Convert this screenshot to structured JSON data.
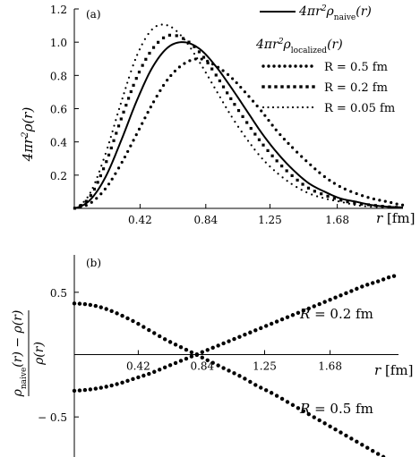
{
  "chart_data": [
    {
      "type": "line",
      "panel_label": "(a)",
      "xlabel": "r [fm]",
      "ylabel": "4πr²ρ(r)",
      "xlim": [
        0,
        2.1
      ],
      "ylim": [
        0,
        1.2
      ],
      "x_ticks": [
        "0.42",
        "0.84",
        "1.25",
        "1.68"
      ],
      "x_tick_values": [
        0.42,
        0.84,
        1.25,
        1.68
      ],
      "y_ticks": [
        "0.2",
        "0.4",
        "0.6",
        "0.8",
        "1.0",
        "1.2"
      ],
      "y_tick_values": [
        0.2,
        0.4,
        0.6,
        0.8,
        1.0,
        1.2
      ],
      "legend_header": "4πr²ρ_localized(r)",
      "grid": false,
      "series": [
        {
          "name": "4πr²ρ_naive(r)",
          "style": "solid",
          "x": [
            0.0,
            0.1,
            0.2,
            0.3,
            0.4,
            0.5,
            0.6,
            0.7,
            0.8,
            0.9,
            1.0,
            1.1,
            1.2,
            1.3,
            1.4,
            1.5,
            1.6,
            1.7,
            1.8,
            1.9,
            2.0,
            2.1
          ],
          "values": [
            0.0,
            0.05,
            0.19,
            0.41,
            0.65,
            0.85,
            0.97,
            1.0,
            0.96,
            0.86,
            0.73,
            0.59,
            0.45,
            0.33,
            0.23,
            0.15,
            0.1,
            0.06,
            0.04,
            0.02,
            0.01,
            0.006
          ]
        },
        {
          "name": "R = 0.5 fm",
          "style": "dotted-round",
          "x": [
            0.0,
            0.1,
            0.2,
            0.3,
            0.4,
            0.5,
            0.6,
            0.7,
            0.8,
            0.9,
            1.0,
            1.1,
            1.2,
            1.3,
            1.4,
            1.5,
            1.6,
            1.7,
            1.8,
            1.9,
            2.0,
            2.1
          ],
          "values": [
            0.0,
            0.03,
            0.12,
            0.27,
            0.45,
            0.63,
            0.78,
            0.87,
            0.9,
            0.86,
            0.79,
            0.69,
            0.58,
            0.46,
            0.36,
            0.27,
            0.19,
            0.13,
            0.09,
            0.06,
            0.04,
            0.02
          ]
        },
        {
          "name": "R = 0.2 fm",
          "style": "dotted-square",
          "x": [
            0.0,
            0.1,
            0.2,
            0.3,
            0.4,
            0.5,
            0.6,
            0.7,
            0.8,
            0.9,
            1.0,
            1.1,
            1.2,
            1.3,
            1.4,
            1.5,
            1.6,
            1.7,
            1.8,
            1.9,
            2.0,
            2.1
          ],
          "values": [
            0.0,
            0.07,
            0.27,
            0.54,
            0.79,
            0.96,
            1.04,
            1.02,
            0.94,
            0.81,
            0.66,
            0.52,
            0.39,
            0.28,
            0.19,
            0.12,
            0.08,
            0.05,
            0.03,
            0.02,
            0.01,
            0.005
          ]
        },
        {
          "name": "R = 0.05 fm",
          "style": "dotted-small",
          "x": [
            0.0,
            0.1,
            0.2,
            0.3,
            0.4,
            0.5,
            0.6,
            0.7,
            0.8,
            0.9,
            1.0,
            1.1,
            1.2,
            1.3,
            1.4,
            1.5,
            1.6,
            1.7,
            1.8,
            1.9,
            2.0,
            2.1
          ],
          "values": [
            0.0,
            0.09,
            0.33,
            0.64,
            0.92,
            1.08,
            1.1,
            1.02,
            0.88,
            0.72,
            0.56,
            0.42,
            0.3,
            0.21,
            0.14,
            0.09,
            0.06,
            0.04,
            0.02,
            0.01,
            0.008,
            0.005
          ]
        }
      ]
    },
    {
      "type": "scatter",
      "panel_label": "(b)",
      "xlabel": "r [fm]",
      "ylabel": "(ρ_naive(r) − ρ(r)) / ρ(r)",
      "xlim": [
        0,
        2.1
      ],
      "ylim": [
        -0.8,
        0.8
      ],
      "x_ticks": [
        "0.42",
        "0.84",
        "1.25",
        "1.68"
      ],
      "x_tick_values": [
        0.42,
        0.84,
        1.25,
        1.68
      ],
      "y_ticks": [
        "0.5",
        "− 0.5"
      ],
      "y_tick_values": [
        0.5,
        -0.5
      ],
      "grid": false,
      "series": [
        {
          "name": "R = 0.2 fm",
          "x": [
            0.0,
            0.1,
            0.2,
            0.3,
            0.4,
            0.5,
            0.6,
            0.7,
            0.8,
            0.9,
            1.0,
            1.1,
            1.2,
            1.3,
            1.4,
            1.5,
            1.6,
            1.7,
            1.8,
            1.9,
            2.0,
            2.1
          ],
          "values": [
            -0.29,
            -0.28,
            -0.26,
            -0.23,
            -0.19,
            -0.15,
            -0.1,
            -0.05,
            0.0,
            0.05,
            0.1,
            0.15,
            0.2,
            0.25,
            0.3,
            0.35,
            0.4,
            0.45,
            0.5,
            0.55,
            0.59,
            0.63
          ]
        },
        {
          "name": "R = 0.5 fm",
          "x": [
            0.0,
            0.1,
            0.2,
            0.3,
            0.4,
            0.5,
            0.6,
            0.7,
            0.8,
            0.9,
            1.0,
            1.1,
            1.2,
            1.3,
            1.4,
            1.5,
            1.6,
            1.7,
            1.8,
            1.9,
            2.0,
            2.1
          ],
          "values": [
            0.41,
            0.4,
            0.37,
            0.32,
            0.26,
            0.19,
            0.12,
            0.06,
            0.0,
            -0.06,
            -0.12,
            -0.18,
            -0.25,
            -0.31,
            -0.38,
            -0.45,
            -0.52,
            -0.59,
            -0.66,
            -0.73,
            -0.8,
            -0.86
          ]
        }
      ]
    }
  ]
}
